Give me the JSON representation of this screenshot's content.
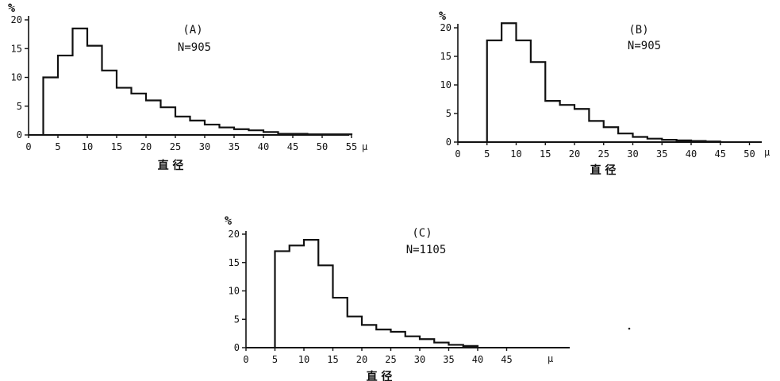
{
  "chart_data": [
    {
      "type": "bar",
      "panel_label": "(A)",
      "n_label": "N=905",
      "ylabel": "%",
      "xlabel": "直 径",
      "x_unit": "μ",
      "x_ticks": [
        0,
        5,
        10,
        15,
        20,
        25,
        30,
        35,
        40,
        45,
        50,
        55
      ],
      "y_ticks": [
        0,
        5,
        10,
        15,
        20
      ],
      "xlim": [
        0,
        55
      ],
      "ylim": [
        0,
        20
      ],
      "bin_width": 2.5,
      "x": [
        2.5,
        5,
        7.5,
        10,
        12.5,
        15,
        17.5,
        20,
        22.5,
        25,
        27.5,
        30,
        32.5,
        35,
        37.5,
        40,
        42.5,
        45,
        47.5,
        50,
        52.5
      ],
      "values": [
        10,
        13.8,
        18.5,
        15.5,
        11.2,
        8.2,
        7.2,
        6,
        4.8,
        3.2,
        2.5,
        1.8,
        1.3,
        1,
        0.8,
        0.5,
        0.2,
        0.2,
        0.1,
        0.1,
        0.1
      ]
    },
    {
      "type": "bar",
      "panel_label": "(B)",
      "n_label": "N=905",
      "ylabel": "%",
      "xlabel": "直 径",
      "x_unit": "μ",
      "x_ticks": [
        0,
        5,
        10,
        15,
        20,
        25,
        30,
        35,
        40,
        45,
        50
      ],
      "y_ticks": [
        0,
        5,
        10,
        15,
        20
      ],
      "xlim": [
        0,
        50
      ],
      "ylim": [
        0,
        20
      ],
      "bin_width": 2.5,
      "x": [
        5,
        7.5,
        10,
        12.5,
        15,
        17.5,
        20,
        22.5,
        25,
        27.5,
        30,
        32.5,
        35,
        37.5,
        40,
        42.5
      ],
      "values": [
        17.8,
        20.8,
        17.8,
        14,
        7.2,
        6.5,
        5.8,
        3.7,
        2.6,
        1.5,
        0.9,
        0.6,
        0.4,
        0.3,
        0.2,
        0.1
      ]
    },
    {
      "type": "bar",
      "panel_label": "(C)",
      "n_label": "N=1105",
      "ylabel": "%",
      "xlabel": "直 径",
      "x_unit": "μ",
      "x_ticks": [
        0,
        5,
        10,
        15,
        20,
        25,
        30,
        35,
        40,
        45
      ],
      "y_ticks": [
        0,
        5,
        10,
        15,
        20
      ],
      "xlim": [
        0,
        55
      ],
      "ylim": [
        0,
        20
      ],
      "bin_width": 2.5,
      "x": [
        5,
        7.5,
        10,
        12.5,
        15,
        17.5,
        20,
        22.5,
        25,
        27.5,
        30,
        32.5,
        35,
        37.5
      ],
      "values": [
        17,
        18,
        19,
        14.5,
        8.8,
        5.5,
        4,
        3.2,
        2.8,
        2,
        1.5,
        0.9,
        0.5,
        0.3
      ]
    }
  ]
}
